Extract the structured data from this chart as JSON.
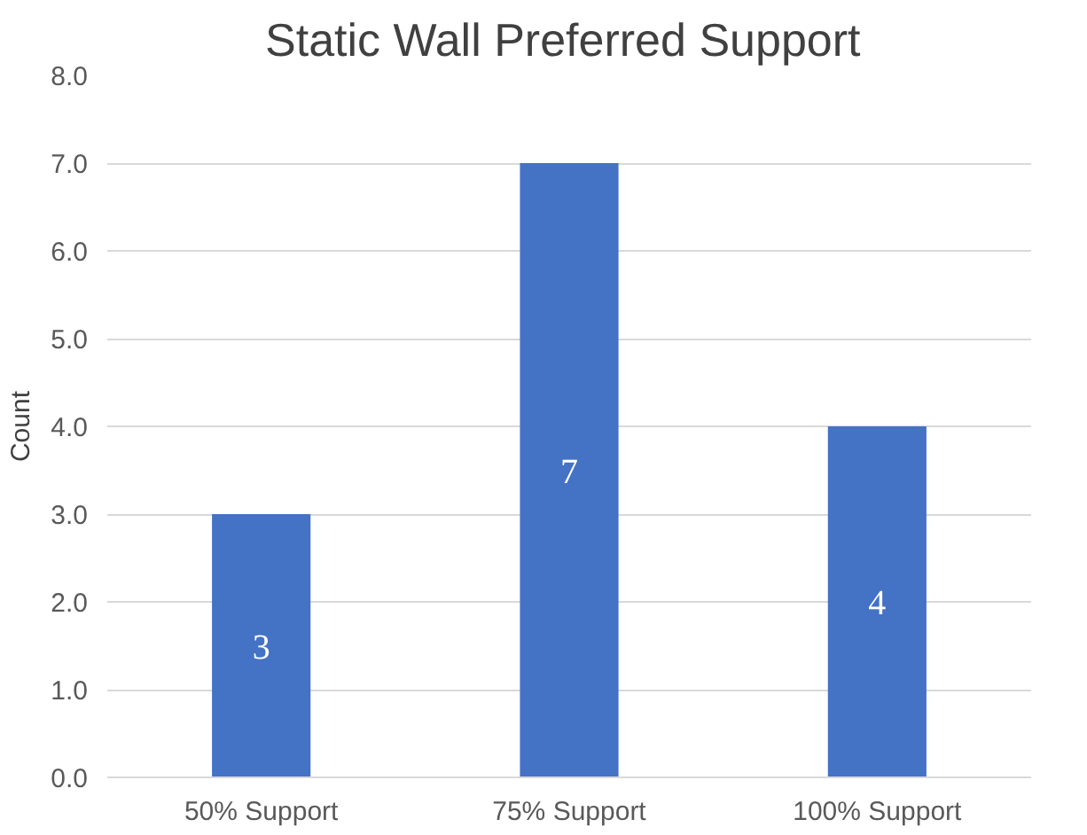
{
  "chart_data": {
    "type": "bar",
    "title": "Static Wall  Preferred Support",
    "ylabel": "Count",
    "categories": [
      "50% Support",
      "75% Support",
      "100% Support"
    ],
    "values": [
      3,
      7,
      4
    ],
    "color": "#4472c4",
    "ylim": [
      0,
      8
    ],
    "yticks": [
      {
        "value": 0,
        "label": "0.0"
      },
      {
        "value": 1,
        "label": "1.0"
      },
      {
        "value": 2,
        "label": "2.0"
      },
      {
        "value": 3,
        "label": "3.0"
      },
      {
        "value": 4,
        "label": "4.0"
      },
      {
        "value": 5,
        "label": "5.0"
      },
      {
        "value": 6,
        "label": "6.0"
      },
      {
        "value": 7,
        "label": "7.0"
      },
      {
        "value": 8,
        "label": "8.0"
      }
    ],
    "grid": "y",
    "data_labels": true
  }
}
